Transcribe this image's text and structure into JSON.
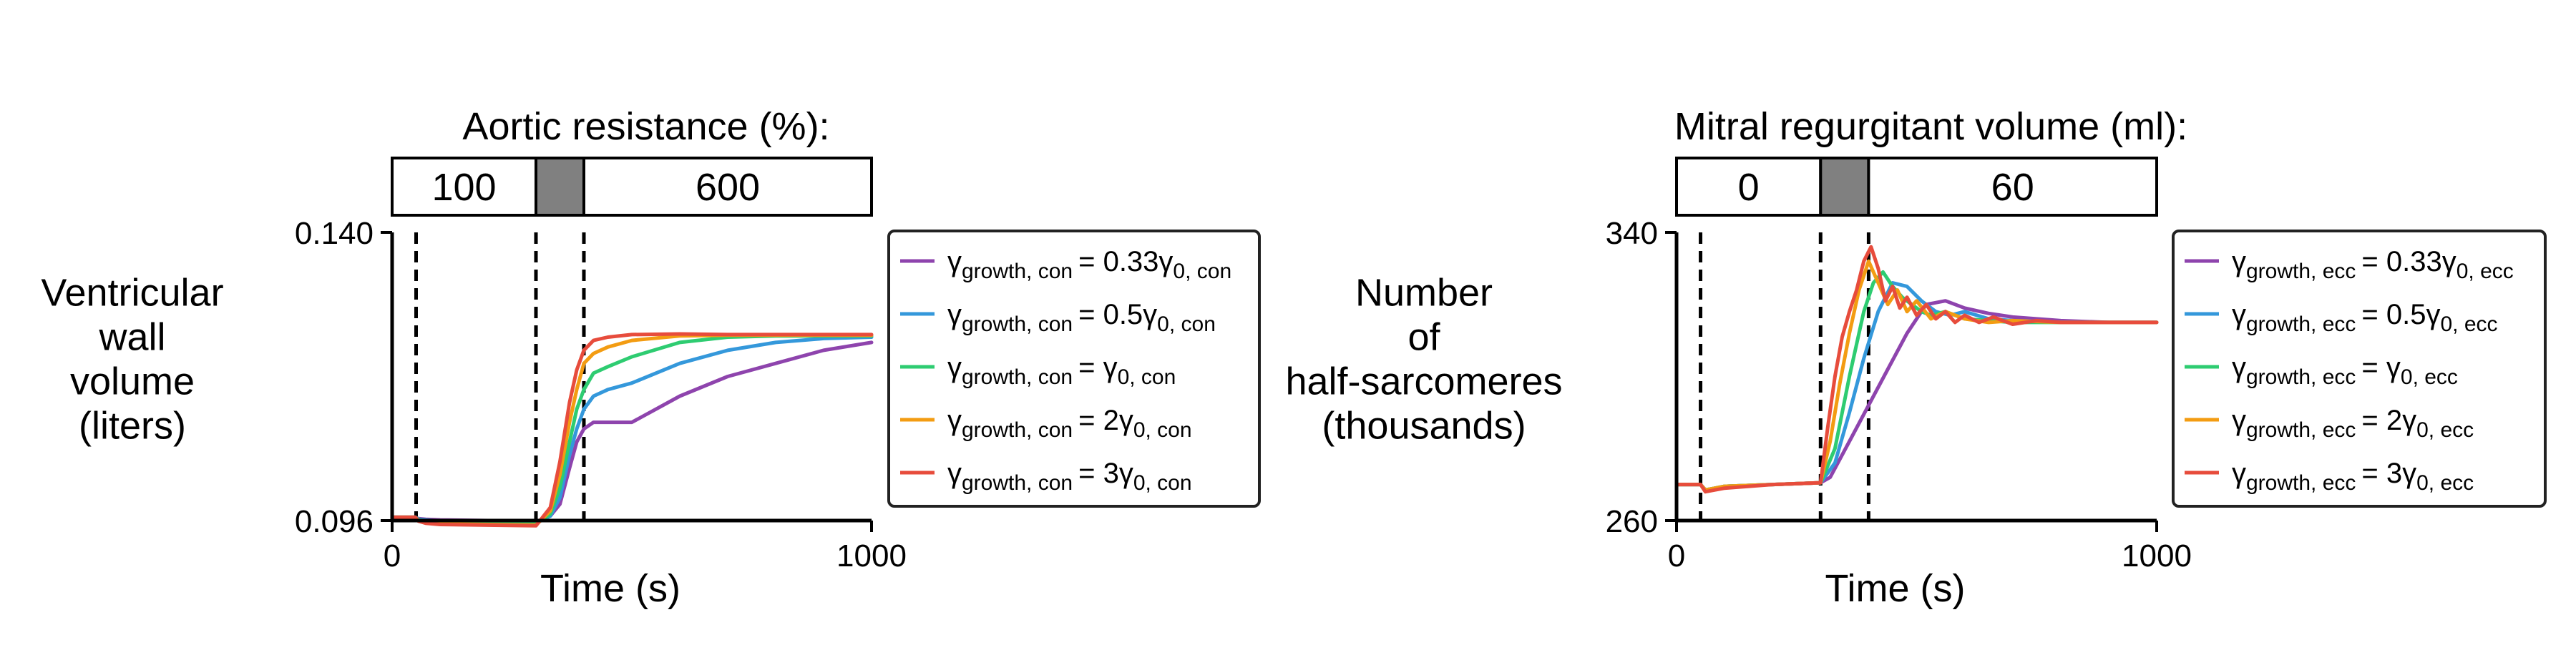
{
  "chart_data": [
    {
      "type": "line",
      "header": "Aortic resistance (%):",
      "segments": [
        {
          "label": "100",
          "x0": 0,
          "x1": 300,
          "fill": "#ffffff"
        },
        {
          "label": "",
          "x0": 300,
          "x1": 400,
          "fill": "#808080"
        },
        {
          "label": "600",
          "x0": 400,
          "x1": 1000,
          "fill": "#ffffff"
        }
      ],
      "ylabel_lines": [
        "Ventricular",
        "wall",
        "volume",
        "(liters)"
      ],
      "xlabel": "Time (s)",
      "xlim": [
        0,
        1000
      ],
      "ylim": [
        0.096,
        0.14
      ],
      "xticks": [
        0,
        1000
      ],
      "xtick_labels": [
        "0",
        "1000"
      ],
      "yticks": [
        0.096,
        0.14
      ],
      "ytick_labels": [
        "0.096",
        "0.140"
      ],
      "vlines": [
        50,
        300,
        400
      ],
      "legend_placement": "right",
      "series": [
        {
          "color": "#8e44ad",
          "legend": {
            "main": "γ",
            "sub": "growth, con",
            "rhs": "= 0.33γ",
            "rhs_sub": "0, con"
          },
          "x": [
            0,
            48,
            55,
            70,
            100,
            200,
            300,
            330,
            350,
            370,
            385,
            400,
            420,
            450,
            500,
            550,
            600,
            700,
            800,
            900,
            1000
          ],
          "y": [
            0.0965,
            0.0965,
            0.0963,
            0.0962,
            0.0961,
            0.096,
            0.0958,
            0.0967,
            0.0985,
            0.104,
            0.108,
            0.11,
            0.111,
            0.111,
            0.111,
            0.113,
            0.115,
            0.118,
            0.12,
            0.122,
            0.1232
          ]
        },
        {
          "color": "#3498db",
          "legend": {
            "main": "γ",
            "sub": "growth, con",
            "rhs": "= 0.5γ",
            "rhs_sub": "0, con"
          },
          "x": [
            0,
            48,
            55,
            70,
            100,
            200,
            300,
            330,
            350,
            370,
            385,
            400,
            420,
            450,
            500,
            600,
            700,
            800,
            900,
            1000
          ],
          "y": [
            0.0965,
            0.0965,
            0.0962,
            0.0961,
            0.0959,
            0.0958,
            0.0956,
            0.0967,
            0.0995,
            0.106,
            0.11,
            0.113,
            0.115,
            0.116,
            0.117,
            0.12,
            0.122,
            0.1232,
            0.1238,
            0.124
          ]
        },
        {
          "color": "#2ecc71",
          "legend": {
            "main": "γ",
            "sub": "growth, con",
            "rhs": "= γ",
            "rhs_sub": "0, con"
          },
          "x": [
            0,
            48,
            55,
            70,
            100,
            200,
            300,
            330,
            350,
            370,
            385,
            400,
            420,
            450,
            500,
            600,
            700,
            800,
            1000
          ],
          "y": [
            0.0965,
            0.0965,
            0.0961,
            0.0959,
            0.0957,
            0.0956,
            0.0955,
            0.097,
            0.101,
            0.108,
            0.113,
            0.116,
            0.1185,
            0.1195,
            0.121,
            0.1232,
            0.124,
            0.1242,
            0.1242
          ]
        },
        {
          "color": "#f39c12",
          "legend": {
            "main": "γ",
            "sub": "growth, con",
            "rhs": "= 2γ",
            "rhs_sub": "0, con"
          },
          "x": [
            0,
            48,
            55,
            70,
            100,
            200,
            300,
            330,
            350,
            370,
            385,
            400,
            420,
            450,
            500,
            600,
            700,
            1000
          ],
          "y": [
            0.0965,
            0.0965,
            0.096,
            0.0958,
            0.0955,
            0.0954,
            0.0953,
            0.0975,
            0.103,
            0.111,
            0.116,
            0.12,
            0.1215,
            0.1225,
            0.1235,
            0.1242,
            0.1243,
            0.1243
          ]
        },
        {
          "color": "#e74c3c",
          "legend": {
            "main": "γ",
            "sub": "growth, con",
            "rhs": "= 3γ",
            "rhs_sub": "0, con"
          },
          "x": [
            0,
            48,
            55,
            70,
            100,
            200,
            300,
            330,
            350,
            370,
            385,
            400,
            420,
            450,
            500,
            600,
            700,
            1000
          ],
          "y": [
            0.0965,
            0.0965,
            0.0959,
            0.0956,
            0.0954,
            0.0953,
            0.0952,
            0.098,
            0.105,
            0.114,
            0.119,
            0.122,
            0.1235,
            0.124,
            0.1244,
            0.1245,
            0.1244,
            0.1244
          ]
        }
      ]
    },
    {
      "type": "line",
      "header": "Mitral regurgitant volume (ml):",
      "segments": [
        {
          "label": "0",
          "x0": 0,
          "x1": 300,
          "fill": "#ffffff"
        },
        {
          "label": "",
          "x0": 300,
          "x1": 400,
          "fill": "#808080"
        },
        {
          "label": "60",
          "x0": 400,
          "x1": 1000,
          "fill": "#ffffff"
        }
      ],
      "ylabel_lines": [
        "Number",
        "of",
        "half-sarcomeres",
        "(thousands)"
      ],
      "xlabel": "Time (s)",
      "xlim": [
        0,
        1000
      ],
      "ylim": [
        260,
        340
      ],
      "xticks": [
        0,
        1000
      ],
      "xtick_labels": [
        "0",
        "1000"
      ],
      "yticks": [
        260,
        340
      ],
      "ytick_labels": [
        "260",
        "340"
      ],
      "vlines": [
        50,
        300,
        400
      ],
      "legend_placement": "right",
      "series": [
        {
          "color": "#8e44ad",
          "legend": {
            "main": "γ",
            "sub": "growth, ecc",
            "rhs": "= 0.33γ",
            "rhs_sub": "0, ecc"
          },
          "x": [
            0,
            50,
            60,
            80,
            100,
            200,
            300,
            320,
            360,
            400,
            440,
            480,
            520,
            560,
            600,
            650,
            700,
            800,
            900,
            1000
          ],
          "y": [
            270,
            270,
            268.5,
            269,
            269.5,
            270,
            270.5,
            272,
            282,
            292,
            302,
            312,
            320,
            321,
            319,
            317.5,
            316.5,
            315.5,
            315,
            315
          ]
        },
        {
          "color": "#3498db",
          "legend": {
            "main": "γ",
            "sub": "growth, ecc",
            "rhs": "= 0.5γ",
            "rhs_sub": "0, ecc"
          },
          "x": [
            0,
            50,
            60,
            80,
            100,
            200,
            300,
            330,
            360,
            390,
            420,
            450,
            480,
            510,
            540,
            570,
            600,
            650,
            700,
            800,
            900,
            1000
          ],
          "y": [
            270,
            270,
            268.5,
            269,
            269.5,
            270,
            270.5,
            276,
            290,
            305,
            318,
            326,
            325,
            321,
            318,
            317,
            318,
            316,
            315.5,
            315,
            315,
            315
          ]
        },
        {
          "color": "#2ecc71",
          "legend": {
            "main": "γ",
            "sub": "growth, ecc",
            "rhs": "= γ",
            "rhs_sub": "0, ecc"
          },
          "x": [
            0,
            50,
            60,
            80,
            100,
            200,
            300,
            330,
            360,
            390,
            410,
            430,
            450,
            470,
            490,
            510,
            530,
            560,
            600,
            650,
            700,
            800,
            1000
          ],
          "y": [
            270,
            270,
            268.5,
            269,
            269.5,
            270,
            270.5,
            280,
            300,
            318,
            326,
            329,
            325,
            322,
            320,
            318,
            317,
            318,
            316,
            315.5,
            315,
            315,
            315
          ]
        },
        {
          "color": "#f39c12",
          "legend": {
            "main": "γ",
            "sub": "growth, ecc",
            "rhs": "= 2γ",
            "rhs_sub": "0, ecc"
          },
          "x": [
            0,
            50,
            60,
            80,
            100,
            200,
            300,
            320,
            340,
            360,
            380,
            400,
            420,
            440,
            460,
            480,
            500,
            530,
            560,
            600,
            650,
            700,
            800,
            1000
          ],
          "y": [
            270,
            270,
            268.5,
            269,
            269.5,
            270,
            270.5,
            282,
            298,
            312,
            324,
            332,
            326,
            320,
            324,
            318,
            321,
            316,
            318,
            316,
            315,
            315.5,
            315,
            315
          ]
        },
        {
          "color": "#e74c3c",
          "legend": {
            "main": "γ",
            "sub": "growth, ecc",
            "rhs": "= 3γ",
            "rhs_sub": "0, ecc"
          },
          "x": [
            0,
            50,
            60,
            80,
            100,
            200,
            300,
            315,
            330,
            345,
            360,
            375,
            390,
            405,
            420,
            435,
            450,
            465,
            480,
            500,
            520,
            540,
            560,
            580,
            600,
            630,
            660,
            700,
            750,
            800,
            900,
            1000
          ],
          "y": [
            270,
            270,
            268,
            268.5,
            269,
            270,
            270.5,
            286,
            300,
            311,
            318,
            324,
            332,
            336,
            330,
            321,
            325,
            319,
            322,
            317,
            320,
            316,
            318,
            315,
            317,
            315,
            316.5,
            314.5,
            315.5,
            315,
            315,
            315
          ]
        }
      ]
    }
  ]
}
